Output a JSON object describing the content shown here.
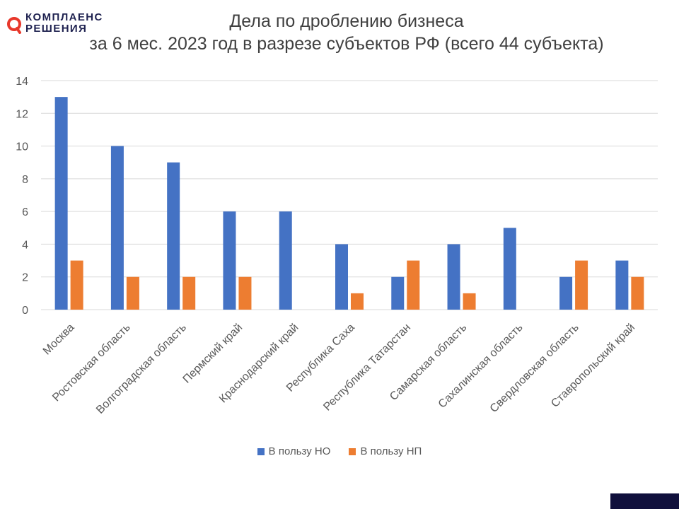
{
  "logo": {
    "line1": "КОМПЛАЕНС",
    "line2": "РЕШЕНИЯ",
    "mark_color": "#e8382b",
    "text_color": "#1f2250"
  },
  "chart_data": {
    "type": "bar",
    "title_line1": "Дела по дроблению бизнеса",
    "title_line2": "за 6 мес. 2023 год в разрезе субъектов РФ (всего 44 субъекта)",
    "categories": [
      "Москва",
      "Ростовская область",
      "Волгоградская область",
      "Пермский край",
      "Краснодарский край",
      "Республика Саха",
      "Республика Татарстан",
      "Самарская область",
      "Сахалинская область",
      "Свердловская область",
      "Ставропольский край"
    ],
    "series": [
      {
        "name": "В пользу НО",
        "color": "#4472c4",
        "values": [
          13,
          10,
          9,
          6,
          6,
          4,
          2,
          4,
          5,
          2,
          3
        ]
      },
      {
        "name": "В пользу НП",
        "color": "#ed7d31",
        "values": [
          3,
          2,
          2,
          2,
          0,
          1,
          3,
          1,
          0,
          3,
          2
        ]
      }
    ],
    "ylim": [
      0,
      14
    ],
    "yticks": [
      0,
      2,
      4,
      6,
      8,
      10,
      12,
      14
    ],
    "grid": true,
    "legend_position": "bottom"
  },
  "colors": {
    "text": "#404040",
    "axis_text": "#595959",
    "grid": "#d9d9d9",
    "corner_block": "#10103c"
  }
}
